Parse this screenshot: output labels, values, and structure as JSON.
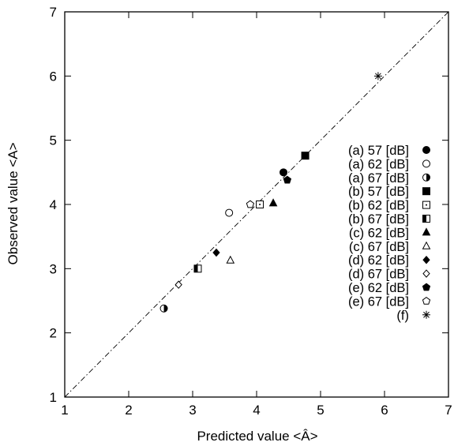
{
  "chart_data": {
    "type": "scatter",
    "xlabel": "Predicted value <Â>",
    "ylabel": "Observed value <A>",
    "xlim": [
      1,
      7
    ],
    "ylim": [
      1,
      7
    ],
    "xticks": [
      "1",
      "2",
      "3",
      "4",
      "5",
      "6",
      "7"
    ],
    "yticks": [
      "1",
      "2",
      "3",
      "4",
      "5",
      "6",
      "7"
    ],
    "grid": false,
    "legend_position": "right",
    "reference_line": "y = x (dash-dot)",
    "series": [
      {
        "name": "(a) 57 [dB]",
        "marker": "circle-filled",
        "x": [
          4.42
        ],
        "y": [
          4.5
        ]
      },
      {
        "name": "(a) 62 [dB]",
        "marker": "circle-open",
        "x": [
          3.57
        ],
        "y": [
          3.87
        ]
      },
      {
        "name": "(a) 67 [dB]",
        "marker": "circle-half",
        "x": [
          2.55
        ],
        "y": [
          2.38
        ]
      },
      {
        "name": "(b) 57 [dB]",
        "marker": "square-filled",
        "x": [
          4.76
        ],
        "y": [
          4.76
        ]
      },
      {
        "name": "(b) 62 [dB]",
        "marker": "square-dot",
        "x": [
          4.05
        ],
        "y": [
          4.0
        ]
      },
      {
        "name": "(b) 67 [dB]",
        "marker": "square-half",
        "x": [
          3.08
        ],
        "y": [
          3.0
        ]
      },
      {
        "name": "(c) 62 [dB]",
        "marker": "triangle-filled",
        "x": [
          4.26
        ],
        "y": [
          4.02
        ]
      },
      {
        "name": "(c) 67 [dB]",
        "marker": "triangle-open",
        "x": [
          3.59
        ],
        "y": [
          3.13
        ]
      },
      {
        "name": "(d) 62 [dB]",
        "marker": "diamond-filled",
        "x": [
          3.37
        ],
        "y": [
          3.25
        ]
      },
      {
        "name": "(d) 67 [dB]",
        "marker": "diamond-open",
        "x": [
          2.78
        ],
        "y": [
          2.75
        ]
      },
      {
        "name": "(e) 62 [dB]",
        "marker": "pentagon-filled",
        "x": [
          4.48
        ],
        "y": [
          4.38
        ]
      },
      {
        "name": "(e) 67 [dB]",
        "marker": "pentagon-open",
        "x": [
          3.9
        ],
        "y": [
          4.0
        ]
      },
      {
        "name": "(f)",
        "marker": "asterisk",
        "x": [
          5.9
        ],
        "y": [
          6.0
        ]
      }
    ]
  }
}
